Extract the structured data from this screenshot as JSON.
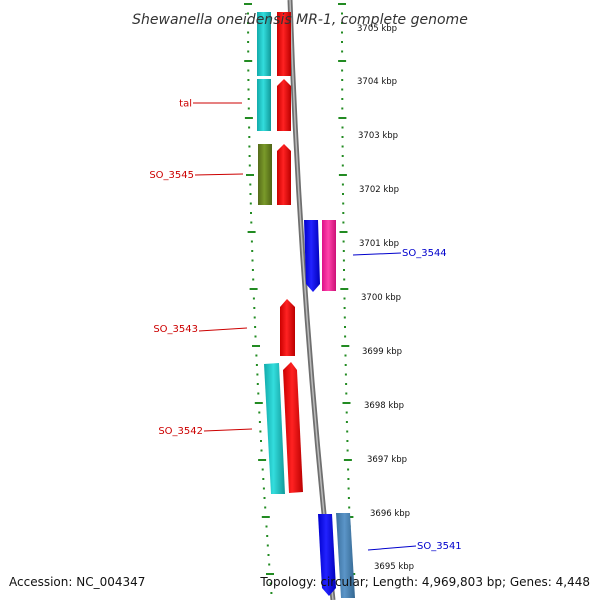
{
  "title": "Shewanella oneidensis MR-1, complete genome",
  "footer": {
    "accession": "Accession: NC_004347",
    "topology": "Topology: circular; Length: 4,969,803 bp; Genes: 4,448"
  },
  "colors": {
    "forward_label": "#cc0000",
    "reverse_label": "#0000cc",
    "ruler_tick": "#228b22",
    "backbone": "#888888",
    "cyan_gene": "#22cccc",
    "red_gene": "#ee1111",
    "olive_gene": "#6b8e23",
    "blue_gene": "#1111ee",
    "pink_gene": "#ee3399",
    "steel_gene": "#4682b4"
  },
  "kbp_ticks": [
    "3705 kbp",
    "3704 kbp",
    "3703 kbp",
    "3702 kbp",
    "3701 kbp",
    "3700 kbp",
    "3699 kbp",
    "3698 kbp",
    "3697 kbp",
    "3696 kbp",
    "3695 kbp"
  ],
  "gene_labels": [
    {
      "name": "tal",
      "strand": "forward"
    },
    {
      "name": "SO_3545",
      "strand": "forward"
    },
    {
      "name": "SO_3544",
      "strand": "reverse"
    },
    {
      "name": "SO_3543",
      "strand": "forward"
    },
    {
      "name": "SO_3542",
      "strand": "forward"
    },
    {
      "name": "SO_3541",
      "strand": "reverse"
    }
  ]
}
